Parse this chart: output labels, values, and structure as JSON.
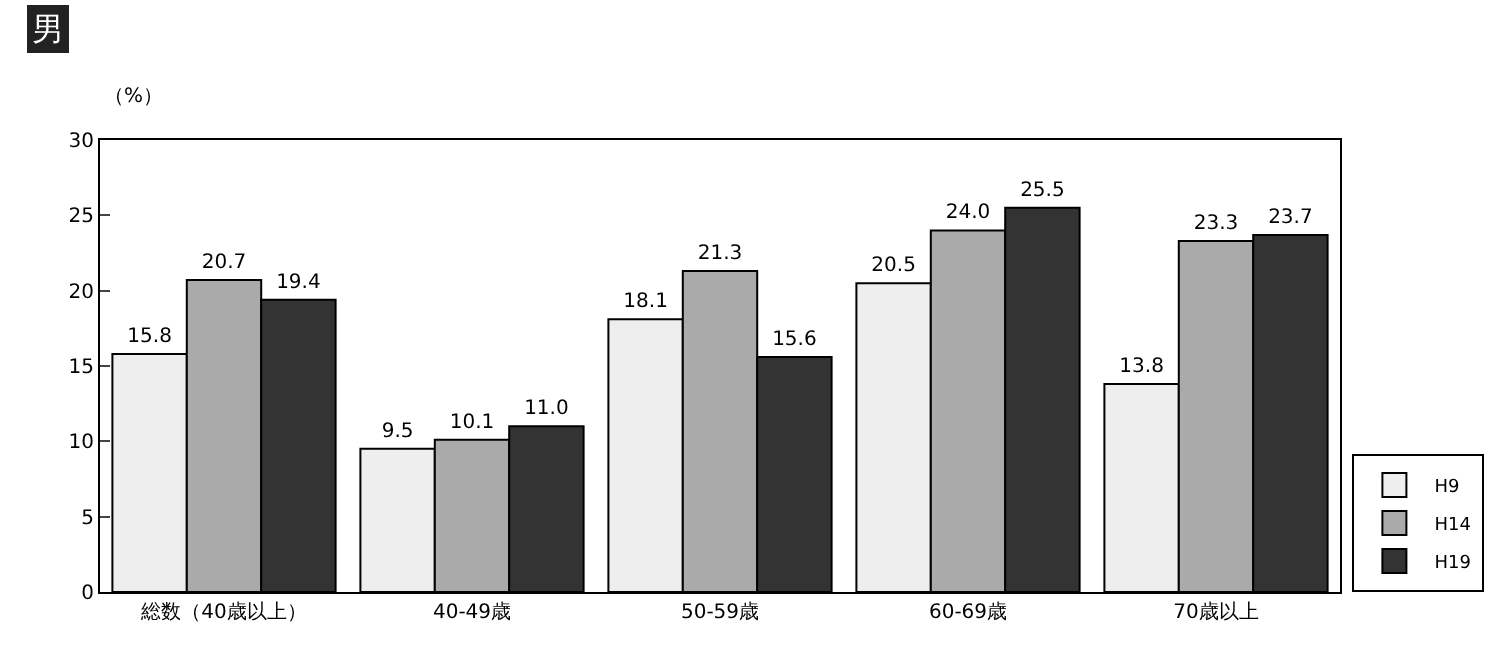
{
  "chart_data": {
    "type": "bar",
    "title": "男",
    "ylabel": "（%）",
    "categories": [
      "総数（40歳以上）",
      "40-49歳",
      "50-59歳",
      "60-69歳",
      "70歳以上"
    ],
    "series": [
      {
        "name": "H9",
        "color": "#eeeeee",
        "values": [
          15.8,
          9.5,
          18.1,
          20.5,
          13.8
        ],
        "value_labels": [
          "15.8",
          "9.5",
          "18.1",
          "20.5",
          "13.8"
        ]
      },
      {
        "name": "H14",
        "color": "#aaaaaa",
        "values": [
          20.7,
          10.1,
          21.3,
          24.0,
          23.3
        ],
        "value_labels": [
          "20.7",
          "10.1",
          "21.3",
          "24.0",
          "23.3"
        ]
      },
      {
        "name": "H19",
        "color": "#333333",
        "values": [
          19.4,
          11.0,
          15.6,
          25.5,
          23.7
        ],
        "value_labels": [
          "19.4",
          "11.0",
          "15.6",
          "25.5",
          "23.7"
        ]
      }
    ],
    "ylim": [
      0,
      30
    ],
    "yticks": [
      0,
      5,
      10,
      15,
      20,
      25,
      30
    ],
    "legend": "bottom right"
  }
}
